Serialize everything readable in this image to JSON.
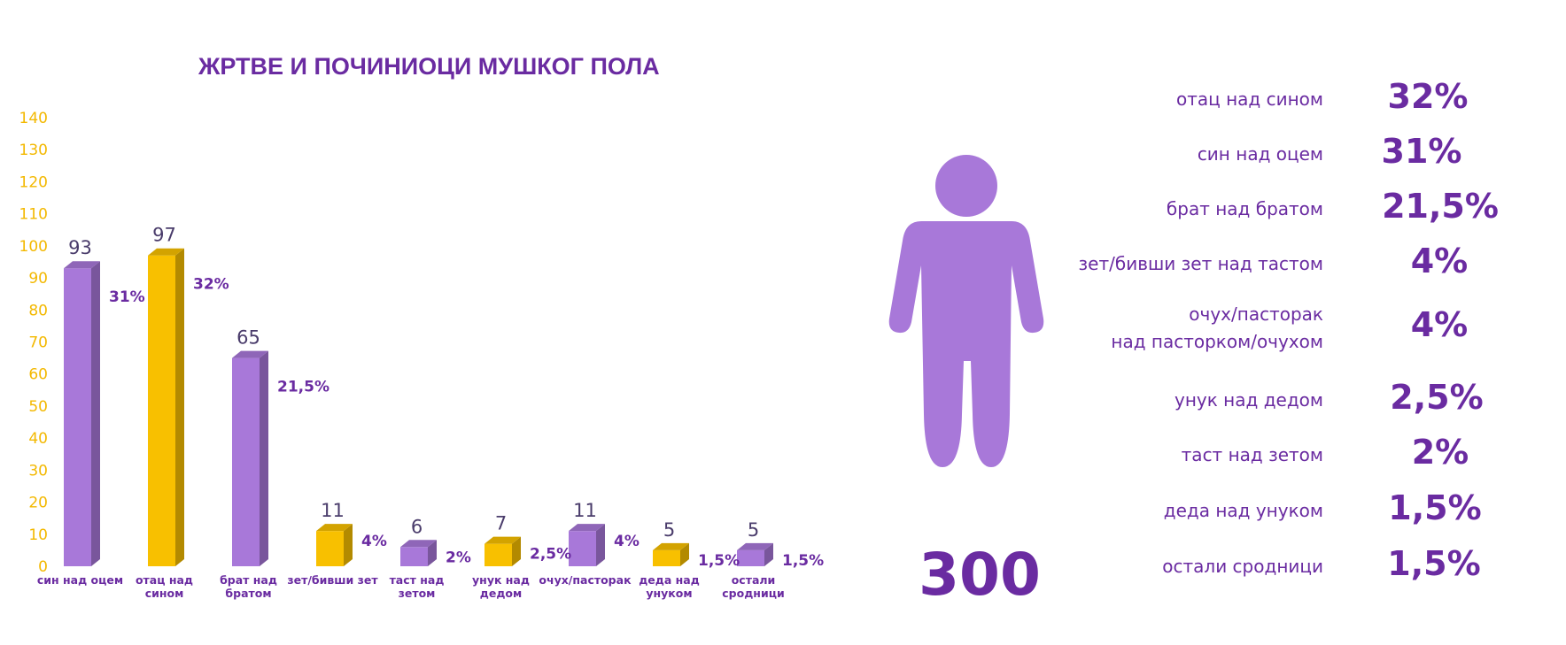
{
  "chart_data": {
    "type": "bar",
    "title": "ЖРТВЕ И ПОЧИНИОЦИ МУШКОГ ПОЛА",
    "ylim": [
      0,
      140
    ],
    "yticks": [
      0,
      10,
      20,
      30,
      40,
      50,
      60,
      70,
      80,
      90,
      100,
      110,
      120,
      130,
      140
    ],
    "categories": [
      [
        "син над оцем"
      ],
      [
        "отац над",
        "сином"
      ],
      [
        "брат над",
        "братом"
      ],
      [
        "зет/бивши зет"
      ],
      [
        "таст над",
        "зетом"
      ],
      [
        "унук над",
        "дедом"
      ],
      [
        "очух/пасторак"
      ],
      [
        "деда над",
        "унуком"
      ],
      [
        "остали",
        "сродници"
      ]
    ],
    "values": [
      93,
      97,
      65,
      11,
      6,
      7,
      11,
      5,
      5
    ],
    "percent_labels": [
      "31%",
      "32%",
      "21,5%",
      "4%",
      "2%",
      "2,5%",
      "4%",
      "1,5%",
      "1,5%"
    ],
    "bar_colors": [
      "#a878d9",
      "#f8c000",
      "#a878d9",
      "#f8c000",
      "#a878d9",
      "#f8c000",
      "#a878d9",
      "#f8c000",
      "#a878d9"
    ],
    "grid": false,
    "legend": "right"
  },
  "total": "300",
  "figure_icon": "person-icon",
  "breakdown": [
    {
      "label": [
        "отац над сином"
      ],
      "value": "32%"
    },
    {
      "label": [
        "син над оцем"
      ],
      "value": "31%"
    },
    {
      "label": [
        "брат над братом"
      ],
      "value": "21,5%"
    },
    {
      "label": [
        "зет/бивши зет над тастом"
      ],
      "value": "4%"
    },
    {
      "label": [
        "очух/пасторак",
        "над пасторком/очухом"
      ],
      "value": "4%"
    },
    {
      "label": [
        "унук над дедом"
      ],
      "value": "2,5%"
    },
    {
      "label": [
        "таст над зетом"
      ],
      "value": "2%"
    },
    {
      "label": [
        "деда над унуком"
      ],
      "value": "1,5%"
    },
    {
      "label": [
        "остали сродници"
      ],
      "value": "1,5%"
    }
  ],
  "colors": {
    "purple": "#a878d9",
    "yellow": "#f8c000",
    "text_purple": "#6a2ba1",
    "tick_yellow": "#f3b800",
    "figure": "#a878d9"
  }
}
